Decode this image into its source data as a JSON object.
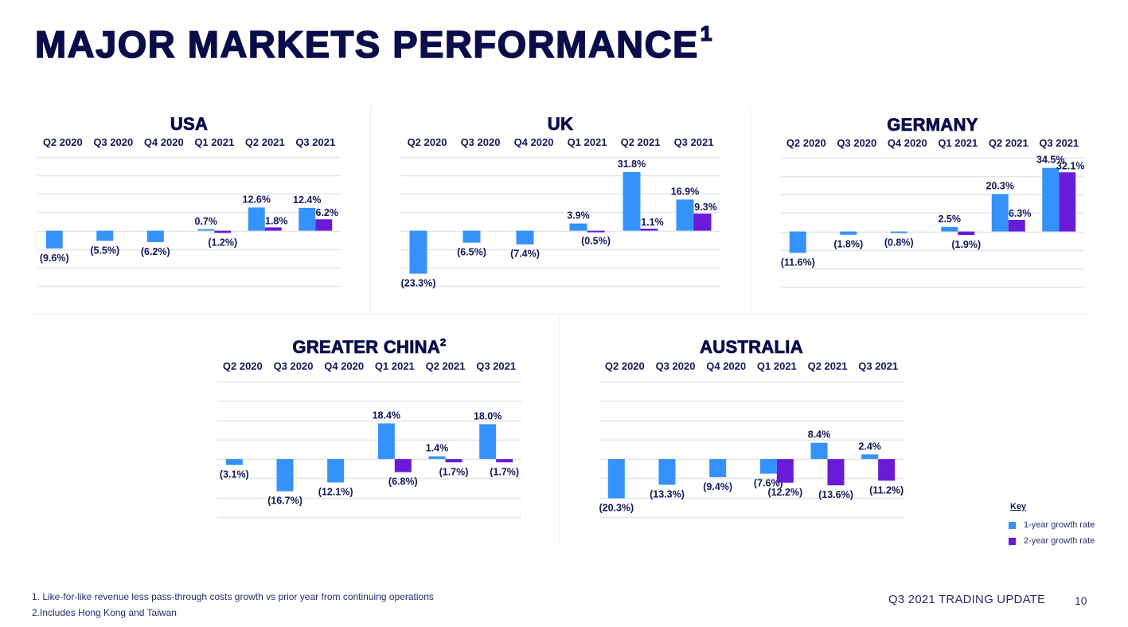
{
  "page": {
    "title": "MAJOR MARKETS PERFORMANCE",
    "title_superscript": "1",
    "footer_title": "Q3 2021 TRADING UPDATE",
    "page_number": "10"
  },
  "footnotes": [
    "1. Like-for-like revenue less pass-through costs growth vs prior year from continuing operations",
    "2.Includes Hong Kong and Taiwan"
  ],
  "legend": {
    "title": "Key",
    "items": [
      {
        "label": "1-year growth rate",
        "color": "#3592fb"
      },
      {
        "label": "2-year growth rate",
        "color": "#6a1bd8"
      }
    ]
  },
  "colors": {
    "one_year": "#3592fb",
    "two_year": "#6a1bd8",
    "grid": "#e6e6ea",
    "label": "#14165a"
  },
  "chart_data": [
    {
      "type": "bar",
      "title": "USA",
      "title_superscript": "",
      "categories": [
        "Q2 2020",
        "Q3 2020",
        "Q4 2020",
        "Q1 2021",
        "Q2 2021",
        "Q3 2021"
      ],
      "series": [
        {
          "name": "1-year growth rate",
          "values": [
            -9.6,
            -5.5,
            -6.2,
            0.7,
            12.6,
            12.4
          ]
        },
        {
          "name": "2-year growth rate",
          "values": [
            null,
            null,
            null,
            -1.2,
            1.8,
            6.2
          ]
        }
      ],
      "unit": "%",
      "negative_format": "parentheses",
      "ylim": [
        -30,
        40
      ],
      "grid_step": 10,
      "grid": true,
      "legend_position": "bottom-right"
    },
    {
      "type": "bar",
      "title": "UK",
      "title_superscript": "",
      "categories": [
        "Q2 2020",
        "Q3 2020",
        "Q4 2020",
        "Q1 2021",
        "Q2 2021",
        "Q3 2021"
      ],
      "series": [
        {
          "name": "1-year growth rate",
          "values": [
            -23.3,
            -6.5,
            -7.4,
            3.9,
            31.8,
            16.9
          ]
        },
        {
          "name": "2-year growth rate",
          "values": [
            null,
            null,
            null,
            -0.5,
            1.1,
            9.3
          ]
        }
      ],
      "unit": "%",
      "negative_format": "parentheses",
      "ylim": [
        -30,
        40
      ],
      "grid_step": 10,
      "grid": true
    },
    {
      "type": "bar",
      "title": "GERMANY",
      "title_superscript": "",
      "categories": [
        "Q2 2020",
        "Q3 2020",
        "Q4 2020",
        "Q1 2021",
        "Q2 2021",
        "Q3 2021"
      ],
      "series": [
        {
          "name": "1-year growth rate",
          "values": [
            -11.6,
            -1.8,
            -0.8,
            2.5,
            20.3,
            34.5
          ]
        },
        {
          "name": "2-year growth rate",
          "values": [
            null,
            null,
            null,
            -1.9,
            6.3,
            32.1
          ]
        }
      ],
      "unit": "%",
      "negative_format": "parentheses",
      "ylim": [
        -30,
        40
      ],
      "grid_step": 10,
      "grid": true
    },
    {
      "type": "bar",
      "title": "GREATER CHINA",
      "title_superscript": "2",
      "categories": [
        "Q2 2020",
        "Q3 2020",
        "Q4 2020",
        "Q1 2021",
        "Q2 2021",
        "Q3 2021"
      ],
      "series": [
        {
          "name": "1-year growth rate",
          "values": [
            -3.1,
            -16.7,
            -12.1,
            18.4,
            1.4,
            18.0
          ]
        },
        {
          "name": "2-year growth rate",
          "values": [
            null,
            null,
            null,
            -6.8,
            -1.7,
            -1.7
          ]
        }
      ],
      "unit": "%",
      "negative_format": "parentheses",
      "ylim": [
        -30,
        40
      ],
      "grid_step": 10,
      "grid": true
    },
    {
      "type": "bar",
      "title": "AUSTRALIA",
      "title_superscript": "",
      "categories": [
        "Q2 2020",
        "Q3 2020",
        "Q4 2020",
        "Q1 2021",
        "Q2 2021",
        "Q3 2021"
      ],
      "series": [
        {
          "name": "1-year growth rate",
          "values": [
            -20.3,
            -13.3,
            -9.4,
            -7.6,
            8.4,
            2.4
          ]
        },
        {
          "name": "2-year growth rate",
          "values": [
            null,
            null,
            null,
            -12.2,
            -13.6,
            -11.2
          ]
        }
      ],
      "unit": "%",
      "negative_format": "parentheses",
      "ylim": [
        -30,
        40
      ],
      "grid_step": 10,
      "grid": true
    }
  ]
}
